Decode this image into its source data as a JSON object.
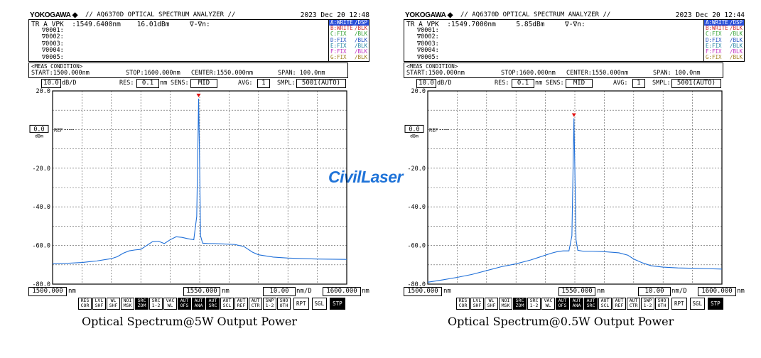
{
  "watermark": "CivilLaser",
  "panels": [
    {
      "brand": "YOKOGAWA ◆",
      "model": "// AQ6370D OPTICAL SPECTRUM ANALYZER //",
      "datetime": "2023 Dec 20 12:48",
      "trline": "TR A VPK  :1549.6400nm    16.01dBm     ∇-∇n:",
      "vlist": [
        "∇0001:",
        "∇0002:",
        "∇0003:",
        "∇0004:",
        "∇0005:"
      ],
      "traces": [
        {
          "name": "A:WRITE",
          "mode": "/DSP",
          "color": "#ffffff"
        },
        {
          "name": "B:WRITE",
          "mode": "/BLK",
          "color": "#d03030"
        },
        {
          "name": "C:FIX",
          "mode": "/BLK",
          "color": "#30a030"
        },
        {
          "name": "D:FIX",
          "mode": "/BLK",
          "color": "#2050c0"
        },
        {
          "name": "E:FIX",
          "mode": "/BLK",
          "color": "#2080a0"
        },
        {
          "name": "F:FIX",
          "mode": "/BLK",
          "color": "#c030c0"
        },
        {
          "name": "G:FIX",
          "mode": "/BLK",
          "color": "#a08020"
        }
      ],
      "meas_title": "<MEAS CONDITION>",
      "start": "START:1500.000nm",
      "stop": "STOP:1600.000nm",
      "center": "CENTER:1550.000nm",
      "span": "SPAN: 100.0nm",
      "scale_value": "10.0",
      "scale_unit": "dB/D",
      "res_label": "RES:",
      "res_value": "0.1",
      "res_unit": "nm",
      "sens_label": "SENS:",
      "sens_value": "MID",
      "avg_label": "AVG:",
      "avg_value": "1",
      "smpl_label": "SMPL:",
      "smpl_value": "5001(AUTO)",
      "ref_value": "0.0",
      "ref_label": "REF",
      "ref_unit": "dBm",
      "x_left": "1500.000",
      "x_center": "1550.000",
      "x_right": "1600.000",
      "x_unit": "nm",
      "div_value": "10.00",
      "div_unit": "nm/D",
      "softkeys": [
        [
          "RES",
          "COR"
        ],
        [
          "LVL",
          "SHF"
        ],
        [
          "WL",
          "SHF"
        ],
        [
          "NOI",
          "MSK"
        ],
        [
          "SRC",
          "ZOM"
        ],
        [
          "SRC",
          "1-2"
        ],
        [
          "VAC",
          "WL"
        ],
        [
          "AUT",
          "OFS"
        ],
        [
          "AUT",
          "ANA"
        ],
        [
          "AUT",
          "SRC"
        ],
        [
          "AUT",
          "SCL"
        ],
        [
          "AUT",
          "REF"
        ],
        [
          "AUT",
          "CTR"
        ],
        [
          "SWP",
          "1-2"
        ],
        [
          "SHO",
          "OTH"
        ]
      ],
      "dark_keys": [
        4,
        7,
        8,
        9
      ],
      "buttons": [
        "RPT",
        "SGL",
        "STP"
      ],
      "caption": "Optical Spectrum@5W Output Power"
    },
    {
      "brand": "YOKOGAWA ◆",
      "model": "// AQ6370D OPTICAL SPECTRUM ANALYZER //",
      "datetime": "2023 Dec 20 12:44",
      "trline": "TR A VPK  :1549.7000nm     5.85dBm     ∇-∇n:",
      "vlist": [
        "∇0001:",
        "∇0002:",
        "∇0003:",
        "∇0004:",
        "∇0005:"
      ],
      "traces": [
        {
          "name": "A:WRITE",
          "mode": "/DSP",
          "color": "#ffffff"
        },
        {
          "name": "B:WRITE",
          "mode": "/BLK",
          "color": "#d03030"
        },
        {
          "name": "C:FIX",
          "mode": "/BLK",
          "color": "#30a030"
        },
        {
          "name": "D:FIX",
          "mode": "/BLK",
          "color": "#2050c0"
        },
        {
          "name": "E:FIX",
          "mode": "/BLK",
          "color": "#2080a0"
        },
        {
          "name": "F:FIX",
          "mode": "/BLK",
          "color": "#c030c0"
        },
        {
          "name": "G:FIX",
          "mode": "/BLK",
          "color": "#a08020"
        }
      ],
      "meas_title": "<MEAS CONDITION>",
      "start": "START:1500.000nm",
      "stop": "STOP:1600.000nm",
      "center": "CENTER:1550.000nm",
      "span": "SPAN: 100.0nm",
      "scale_value": "10.0",
      "scale_unit": "dB/D",
      "res_label": "RES:",
      "res_value": "0.1",
      "res_unit": "nm",
      "sens_label": "SENS:",
      "sens_value": "MID",
      "avg_label": "AVG:",
      "avg_value": "1",
      "smpl_label": "SMPL:",
      "smpl_value": "5001(AUTO)",
      "ref_value": "0.0",
      "ref_label": "REF",
      "ref_unit": "dBm",
      "x_left": "1500.000",
      "x_center": "1550.000",
      "x_right": "1600.000",
      "x_unit": "nm",
      "div_value": "10.00",
      "div_unit": "nm/D",
      "softkeys": [
        [
          "RES",
          "COR"
        ],
        [
          "LVL",
          "SHF"
        ],
        [
          "WL",
          "SHF"
        ],
        [
          "NOI",
          "MSK"
        ],
        [
          "SRC",
          "ZOM"
        ],
        [
          "SRC",
          "1-2"
        ],
        [
          "VAC",
          "WL"
        ],
        [
          "AUT",
          "OFS"
        ],
        [
          "AUT",
          "ANA"
        ],
        [
          "AUT",
          "SRC"
        ],
        [
          "AUT",
          "SCL"
        ],
        [
          "AUT",
          "REF"
        ],
        [
          "AUT",
          "CTR"
        ],
        [
          "SWP",
          "1-2"
        ],
        [
          "SHO",
          "OTH"
        ]
      ],
      "dark_keys": [
        4,
        7,
        8,
        9
      ],
      "buttons": [
        "RPT",
        "SGL",
        "STP"
      ],
      "caption": "Optical Spectrum@0.5W Output Power"
    }
  ],
  "chart_data": [
    {
      "type": "line",
      "xlabel": "",
      "ylabel": "",
      "xlim": [
        1500,
        1600
      ],
      "ylim": [
        -80,
        20
      ],
      "y_ticks": [
        "20.0",
        "0.0",
        "-20.0",
        "-40.0",
        "-60.0",
        "-80.0"
      ],
      "grid": true,
      "line_color": "#1f6fd8",
      "peak": {
        "x": 1549.64,
        "y": 16.01
      },
      "x": [
        1500,
        1505,
        1510,
        1515,
        1520,
        1522,
        1524,
        1526,
        1528,
        1530,
        1532,
        1534,
        1536,
        1538,
        1540,
        1542,
        1544,
        1546,
        1548,
        1549,
        1549.4,
        1549.64,
        1549.9,
        1550.3,
        1551,
        1553,
        1555,
        1558,
        1562,
        1565,
        1568,
        1570,
        1575,
        1580,
        1585,
        1590,
        1595,
        1600
      ],
      "y": [
        -69.5,
        -69.2,
        -68.8,
        -68.0,
        -66.8,
        -65.8,
        -64.0,
        -62.8,
        -62.3,
        -62.0,
        -60.0,
        -58.0,
        -57.8,
        -59.0,
        -57.0,
        -55.5,
        -55.8,
        -56.5,
        -57.0,
        -45,
        -8,
        16.01,
        -8,
        -55,
        -58.8,
        -59.0,
        -59.0,
        -59.2,
        -59.5,
        -60.5,
        -63.5,
        -64.8,
        -66.0,
        -66.5,
        -66.8,
        -67.0,
        -67.1,
        -67.2
      ]
    },
    {
      "type": "line",
      "xlabel": "",
      "ylabel": "",
      "xlim": [
        1500,
        1600
      ],
      "ylim": [
        -80,
        20
      ],
      "y_ticks": [
        "20.0",
        "0.0",
        "-20.0",
        "-40.0",
        "-60.0",
        "-80.0"
      ],
      "grid": true,
      "line_color": "#1f6fd8",
      "peak": {
        "x": 1549.7,
        "y": 5.85
      },
      "x": [
        1500,
        1505,
        1510,
        1515,
        1520,
        1525,
        1530,
        1535,
        1538,
        1540,
        1542,
        1544,
        1546,
        1548,
        1549,
        1549.4,
        1549.7,
        1550.0,
        1550.4,
        1551,
        1553,
        1556,
        1560,
        1565,
        1568,
        1570,
        1573,
        1576,
        1580,
        1585,
        1590,
        1595,
        1600
      ],
      "y": [
        -79.0,
        -77.8,
        -76.5,
        -75.0,
        -73.0,
        -71.0,
        -69.5,
        -67.5,
        -66.0,
        -65.0,
        -64.0,
        -63.2,
        -62.8,
        -62.8,
        -55,
        -20,
        5.85,
        -20,
        -57,
        -62.5,
        -63.0,
        -63.0,
        -63.2,
        -63.8,
        -65.0,
        -67.0,
        -69.0,
        -70.5,
        -71.2,
        -71.6,
        -71.8,
        -72.0,
        -72.2
      ]
    }
  ]
}
